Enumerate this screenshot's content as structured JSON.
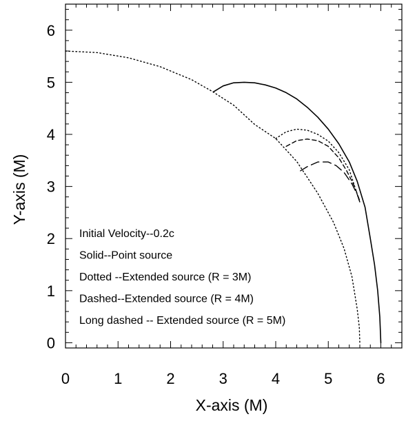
{
  "chart_data": {
    "type": "line",
    "title": "",
    "xlabel": "X-axis (M)",
    "ylabel": "Y-axis (M)",
    "xlim": [
      0,
      6.4
    ],
    "ylim": [
      -0.1,
      6.5
    ],
    "x_ticks": [
      0,
      1,
      2,
      3,
      4,
      5,
      6
    ],
    "y_ticks": [
      0,
      1,
      2,
      3,
      4,
      5,
      6
    ],
    "grid": false,
    "legend_lines": [
      "Initial Velocity--0.2c",
      "Solid--Point source",
      "Dotted --Extended source (R = 3M)",
      "Dashed--Extended source (R = 4M)",
      "Long dashed -- Extended source (R = 5M)"
    ],
    "legend_placement": "bottom-left",
    "series": [
      {
        "style": "dotted",
        "points": [
          [
            0.0,
            5.6
          ],
          [
            0.6,
            5.57
          ],
          [
            1.2,
            5.47
          ],
          [
            1.8,
            5.3
          ],
          [
            2.4,
            5.05
          ],
          [
            2.8,
            4.82
          ],
          [
            3.2,
            4.56
          ],
          [
            3.6,
            4.19
          ],
          [
            4.0,
            3.92
          ],
          [
            4.4,
            3.48
          ],
          [
            4.8,
            2.87
          ],
          [
            5.1,
            2.31
          ],
          [
            5.3,
            1.81
          ],
          [
            5.45,
            1.27
          ],
          [
            5.55,
            0.65
          ],
          [
            5.59,
            0.3
          ],
          [
            5.6,
            0.0
          ]
        ]
      },
      {
        "style": "solid",
        "points": [
          [
            2.82,
            4.82
          ],
          [
            3.0,
            4.93
          ],
          [
            3.2,
            4.99
          ],
          [
            3.4,
            5.0
          ],
          [
            3.6,
            4.99
          ],
          [
            3.8,
            4.95
          ],
          [
            4.0,
            4.89
          ],
          [
            4.2,
            4.8
          ],
          [
            4.4,
            4.68
          ],
          [
            4.6,
            4.52
          ],
          [
            4.8,
            4.33
          ],
          [
            5.0,
            4.1
          ],
          [
            5.2,
            3.82
          ],
          [
            5.4,
            3.47
          ],
          [
            5.55,
            3.1
          ],
          [
            5.7,
            2.6
          ],
          [
            5.8,
            2.0
          ],
          [
            5.88,
            1.5
          ],
          [
            5.94,
            1.0
          ],
          [
            5.98,
            0.5
          ],
          [
            6.0,
            0.0
          ]
        ]
      },
      {
        "style": "dotted",
        "points": [
          [
            4.0,
            3.92
          ],
          [
            4.2,
            4.05
          ],
          [
            4.4,
            4.1
          ],
          [
            4.6,
            4.08
          ],
          [
            4.8,
            4.0
          ],
          [
            5.0,
            3.87
          ],
          [
            5.2,
            3.65
          ],
          [
            5.4,
            3.32
          ],
          [
            5.55,
            2.85
          ],
          [
            5.6,
            2.7
          ]
        ]
      },
      {
        "style": "dashed",
        "points": [
          [
            4.2,
            3.77
          ],
          [
            4.4,
            3.88
          ],
          [
            4.6,
            3.91
          ],
          [
            4.8,
            3.88
          ],
          [
            5.0,
            3.77
          ],
          [
            5.2,
            3.55
          ],
          [
            5.35,
            3.3
          ],
          [
            5.5,
            3.0
          ],
          [
            5.6,
            2.72
          ]
        ]
      },
      {
        "style": "long-dashed",
        "points": [
          [
            4.47,
            3.3
          ],
          [
            4.6,
            3.38
          ],
          [
            4.8,
            3.47
          ],
          [
            5.0,
            3.47
          ],
          [
            5.15,
            3.4
          ],
          [
            5.3,
            3.27
          ],
          [
            5.45,
            3.05
          ],
          [
            5.55,
            2.85
          ],
          [
            5.6,
            2.7
          ]
        ]
      }
    ]
  }
}
